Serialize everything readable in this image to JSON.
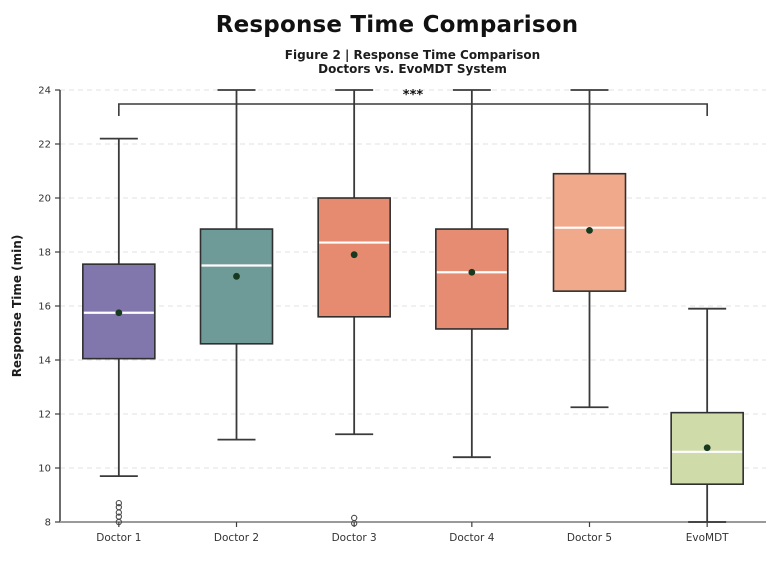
{
  "chart_data": {
    "type": "boxplot",
    "title": "Response Time Comparison",
    "subtitle_line1": "Figure 2 | Response Time Comparison",
    "subtitle_line2": "Doctors vs. EvoMDT System",
    "ylabel": "Response Time (min)",
    "ylim": [
      8,
      24
    ],
    "yticks": [
      8,
      10,
      12,
      14,
      16,
      18,
      20,
      22,
      24
    ],
    "grid": "horizontal-dashed",
    "legend": "none",
    "categories": [
      "Doctor 1",
      "Doctor 2",
      "Doctor 3",
      "Doctor 4",
      "Doctor 5",
      "EvoMDT"
    ],
    "boxes": [
      {
        "label": "Doctor 1",
        "color": "#8177AC",
        "whisker_low": 9.7,
        "q1": 14.05,
        "median": 15.75,
        "q3": 17.55,
        "whisker_high": 22.2,
        "mean": 15.75,
        "outliers": [
          8.7,
          8.55,
          8.35,
          8.2,
          8.0
        ]
      },
      {
        "label": "Doctor 2",
        "color": "#6E9A97",
        "whisker_low": 11.05,
        "q1": 14.6,
        "median": 17.5,
        "q3": 18.85,
        "whisker_high": 24.0,
        "mean": 17.1,
        "outliers": []
      },
      {
        "label": "Doctor 3",
        "color": "#E78B70",
        "whisker_low": 11.25,
        "q1": 15.6,
        "median": 18.35,
        "q3": 20.0,
        "whisker_high": 24.0,
        "mean": 17.9,
        "outliers": [
          8.15,
          7.95
        ]
      },
      {
        "label": "Doctor 4",
        "color": "#E58C72",
        "whisker_low": 10.4,
        "q1": 15.15,
        "median": 17.25,
        "q3": 18.85,
        "whisker_high": 24.0,
        "mean": 17.25,
        "outliers": []
      },
      {
        "label": "Doctor 5",
        "color": "#F0A98A",
        "whisker_low": 12.25,
        "q1": 16.55,
        "median": 18.9,
        "q3": 20.9,
        "whisker_high": 24.0,
        "mean": 18.8,
        "outliers": []
      },
      {
        "label": "EvoMDT",
        "color": "#CFDBA8",
        "whisker_low": 8.0,
        "q1": 9.4,
        "median": 10.6,
        "q3": 12.05,
        "whisker_high": 15.9,
        "mean": 10.75,
        "outliers": []
      }
    ],
    "significance": {
      "from": "Doctor 1",
      "to": "EvoMDT",
      "label": "***"
    },
    "style": {
      "median_color": "#ffffff",
      "mean_marker_color": "#17391f",
      "box_edge_color": "#2f2f2f",
      "whisker_color": "#3a3a3a",
      "outlier_edge_color": "#4a4a4a",
      "grid_color": "#e2e2e2",
      "left_spine_color": "#3c3c3c",
      "bottom_spine_color": "#9a9a9a",
      "tick_label_color": "#333333",
      "bracket_color": "#3a3a3a"
    }
  }
}
